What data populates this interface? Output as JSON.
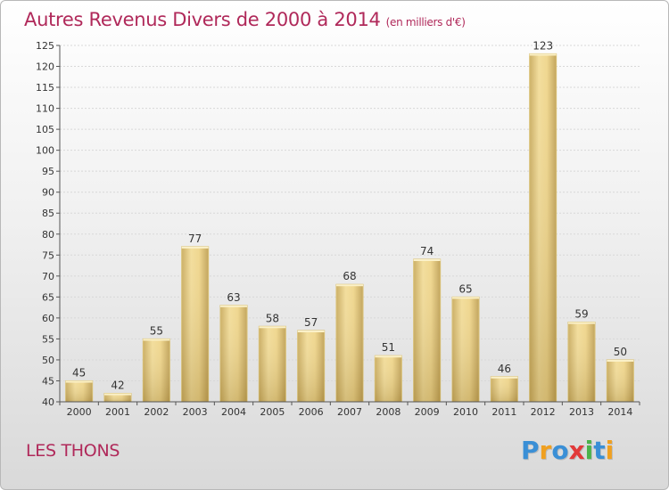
{
  "title": "Autres Revenus Divers de 2000 à 2014",
  "subtitle": "(en milliers d'€)",
  "commune": "LES THONS",
  "logo": {
    "letters": [
      {
        "ch": "P",
        "color": "#3a8fd6"
      },
      {
        "ch": "r",
        "color": "#f0a020"
      },
      {
        "ch": "o",
        "color": "#3a8fd6"
      },
      {
        "ch": "x",
        "color": "#e23a3a"
      },
      {
        "ch": "i",
        "color": "#4bb34b"
      },
      {
        "ch": "t",
        "color": "#3a8fd6"
      },
      {
        "ch": "i",
        "color": "#f0a020"
      }
    ]
  },
  "chart_data": {
    "type": "bar",
    "categories": [
      "2000",
      "2001",
      "2002",
      "2003",
      "2004",
      "2005",
      "2006",
      "2007",
      "2008",
      "2009",
      "2010",
      "2011",
      "2012",
      "2013",
      "2014"
    ],
    "values": [
      45,
      42,
      55,
      77,
      63,
      58,
      57,
      68,
      51,
      74,
      65,
      46,
      123,
      59,
      50
    ],
    "ylim": [
      40,
      125
    ],
    "yticks": [
      40,
      45,
      50,
      55,
      60,
      65,
      70,
      75,
      80,
      85,
      90,
      95,
      100,
      105,
      110,
      115,
      120,
      125
    ],
    "grid": true,
    "bar_color": "#e8cf83"
  }
}
